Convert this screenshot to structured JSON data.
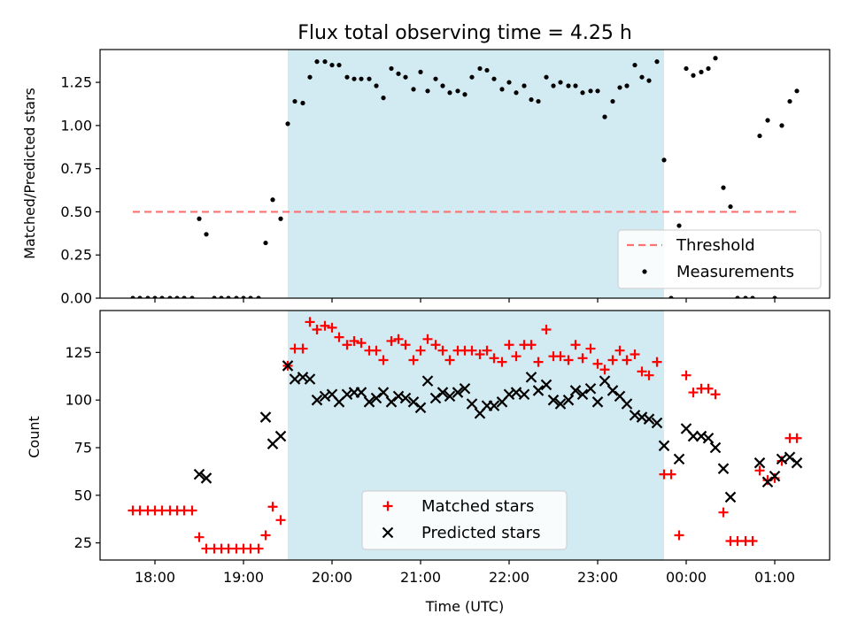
{
  "chart_data": {
    "title": "Flux total observing time = 4.25 h",
    "colors": {
      "shade": "#add8e6",
      "threshold": "#ff7070",
      "measurement": "#000000",
      "matched": "#ff0000",
      "predicted": "#000000"
    },
    "x_ticks": [
      {
        "value": 18,
        "label": "18:00"
      },
      {
        "value": 19,
        "label": "19:00"
      },
      {
        "value": 20,
        "label": "20:00"
      },
      {
        "value": 21,
        "label": "21:00"
      },
      {
        "value": 22,
        "label": "22:00"
      },
      {
        "value": 23,
        "label": "23:00"
      },
      {
        "value": 24,
        "label": "00:00"
      },
      {
        "value": 25,
        "label": "01:00"
      }
    ],
    "xlim": [
      17.38,
      25.62
    ],
    "xlabel": "Time (UTC)",
    "shaded_interval": [
      19.5,
      23.75
    ],
    "panels": [
      {
        "type": "scatter",
        "ylabel": "Matched/Predicted stars",
        "ylim": [
          0,
          1.44
        ],
        "y_ticks": [
          {
            "value": 0,
            "label": "0.00"
          },
          {
            "value": 0.25,
            "label": "0.25"
          },
          {
            "value": 0.5,
            "label": "0.50"
          },
          {
            "value": 0.75,
            "label": "0.75"
          },
          {
            "value": 1.0,
            "label": "1.00"
          },
          {
            "value": 1.25,
            "label": "1.25"
          }
        ],
        "legend": {
          "position": "lower right",
          "entries": [
            "Threshold",
            "Measurements"
          ]
        },
        "series": [
          {
            "name": "Threshold",
            "kind": "dashed-line",
            "x": [
              17.75,
              25.25
            ],
            "y": [
              0.5,
              0.5
            ]
          },
          {
            "name": "Measurements",
            "kind": "dot",
            "x": [
              17.75,
              17.83,
              17.92,
              18.0,
              18.08,
              18.17,
              18.25,
              18.33,
              18.42,
              18.5,
              18.58,
              18.67,
              18.75,
              18.83,
              18.92,
              19.0,
              19.08,
              19.17,
              19.25,
              19.33,
              19.42,
              19.5,
              19.58,
              19.67,
              19.75,
              19.83,
              19.92,
              20.0,
              20.08,
              20.17,
              20.25,
              20.33,
              20.42,
              20.5,
              20.58,
              20.67,
              20.75,
              20.83,
              20.92,
              21.0,
              21.08,
              21.17,
              21.25,
              21.33,
              21.42,
              21.5,
              21.58,
              21.67,
              21.75,
              21.83,
              21.92,
              22.0,
              22.08,
              22.17,
              22.25,
              22.33,
              22.42,
              22.5,
              22.58,
              22.67,
              22.75,
              22.83,
              22.92,
              23.0,
              23.08,
              23.17,
              23.25,
              23.33,
              23.42,
              23.5,
              23.58,
              23.67,
              23.75,
              23.83,
              23.92,
              24.0,
              24.08,
              24.17,
              24.25,
              24.33,
              24.42,
              24.5,
              24.58,
              24.67,
              24.75,
              24.83,
              24.92,
              25.0,
              25.08,
              25.17,
              25.25
            ],
            "y": [
              0.0,
              0.0,
              0.0,
              0.0,
              0.0,
              0.0,
              0.0,
              0.0,
              0.0,
              0.46,
              0.37,
              0.0,
              0.0,
              0.0,
              0.0,
              0.0,
              0.0,
              0.0,
              0.32,
              0.57,
              0.46,
              1.01,
              1.14,
              1.13,
              1.28,
              1.37,
              1.37,
              1.35,
              1.35,
              1.28,
              1.27,
              1.27,
              1.27,
              1.23,
              1.16,
              1.33,
              1.3,
              1.28,
              1.21,
              1.31,
              1.2,
              1.27,
              1.23,
              1.19,
              1.2,
              1.18,
              1.28,
              1.33,
              1.32,
              1.27,
              1.21,
              1.25,
              1.19,
              1.23,
              1.15,
              1.14,
              1.28,
              1.23,
              1.25,
              1.23,
              1.23,
              1.19,
              1.2,
              1.2,
              1.05,
              1.14,
              1.22,
              1.23,
              1.35,
              1.28,
              1.26,
              1.37,
              0.8,
              0.0,
              0.42,
              1.33,
              1.29,
              1.31,
              1.33,
              1.39,
              0.64,
              0.53,
              0.0,
              0.0,
              0.0,
              0.94,
              1.03,
              0.0,
              1.0,
              1.14,
              1.2
            ]
          }
        ]
      },
      {
        "type": "scatter",
        "ylabel": "Count",
        "ylim": [
          16,
          147
        ],
        "y_ticks": [
          {
            "value": 25,
            "label": "25"
          },
          {
            "value": 50,
            "label": "50"
          },
          {
            "value": 75,
            "label": "75"
          },
          {
            "value": 100,
            "label": "100"
          },
          {
            "value": 125,
            "label": "125"
          }
        ],
        "legend": {
          "position": "lower center",
          "entries": [
            "Matched stars",
            "Predicted stars"
          ]
        },
        "series": [
          {
            "name": "Matched stars",
            "kind": "plus",
            "x": [
              17.75,
              17.83,
              17.92,
              18.0,
              18.08,
              18.17,
              18.25,
              18.33,
              18.42,
              18.5,
              18.58,
              18.67,
              18.75,
              18.83,
              18.92,
              19.0,
              19.08,
              19.17,
              19.25,
              19.33,
              19.42,
              19.5,
              19.58,
              19.67,
              19.75,
              19.83,
              19.92,
              20.0,
              20.08,
              20.17,
              20.25,
              20.33,
              20.42,
              20.5,
              20.58,
              20.67,
              20.75,
              20.83,
              20.92,
              21.0,
              21.08,
              21.17,
              21.25,
              21.33,
              21.42,
              21.5,
              21.58,
              21.67,
              21.75,
              21.83,
              21.92,
              22.0,
              22.08,
              22.17,
              22.25,
              22.33,
              22.42,
              22.5,
              22.58,
              22.67,
              22.75,
              22.83,
              22.92,
              23.0,
              23.08,
              23.17,
              23.25,
              23.33,
              23.42,
              23.5,
              23.58,
              23.67,
              23.75,
              23.83,
              23.92,
              24.0,
              24.08,
              24.17,
              24.25,
              24.33,
              24.42,
              24.5,
              24.58,
              24.67,
              24.75,
              24.83,
              24.92,
              25.0,
              25.08,
              25.17,
              25.25
            ],
            "y": [
              42,
              42,
              42,
              42,
              42,
              42,
              42,
              42,
              42,
              28,
              22,
              22,
              22,
              22,
              22,
              22,
              22,
              22,
              29,
              44,
              37,
              118,
              127,
              127,
              141,
              137,
              139,
              138,
              133,
              129,
              131,
              130,
              126,
              126,
              121,
              131,
              132,
              129,
              121,
              126,
              132,
              129,
              126,
              121,
              126,
              126,
              126,
              124,
              126,
              122,
              120,
              129,
              123,
              129,
              129,
              120,
              137,
              123,
              123,
              121,
              129,
              122,
              127,
              119,
              116,
              121,
              126,
              121,
              124,
              115,
              113,
              120,
              61,
              61,
              29,
              113,
              104,
              106,
              106,
              103,
              41,
              26,
              26,
              26,
              26,
              63,
              58,
              59,
              68,
              80,
              80
            ]
          },
          {
            "name": "Predicted stars",
            "kind": "cross",
            "x": [
              18.5,
              18.58,
              19.25,
              19.33,
              19.42,
              19.5,
              19.58,
              19.67,
              19.75,
              19.83,
              19.92,
              20.0,
              20.08,
              20.17,
              20.25,
              20.33,
              20.42,
              20.5,
              20.58,
              20.67,
              20.75,
              20.83,
              20.92,
              21.0,
              21.08,
              21.17,
              21.25,
              21.33,
              21.42,
              21.5,
              21.58,
              21.67,
              21.75,
              21.83,
              21.92,
              22.0,
              22.08,
              22.17,
              22.25,
              22.33,
              22.42,
              22.5,
              22.58,
              22.67,
              22.75,
              22.83,
              22.92,
              23.0,
              23.08,
              23.17,
              23.25,
              23.33,
              23.42,
              23.5,
              23.58,
              23.67,
              23.75,
              23.92,
              24.0,
              24.08,
              24.17,
              24.25,
              24.33,
              24.42,
              24.5,
              24.83,
              24.92,
              25.0,
              25.08,
              25.17,
              25.25
            ],
            "y": [
              61,
              59,
              91,
              77,
              81,
              118,
              111,
              112,
              111,
              100,
              102,
              103,
              99,
              103,
              104,
              104,
              99,
              101,
              104,
              99,
              102,
              101,
              99,
              96,
              110,
              101,
              104,
              102,
              104,
              106,
              98,
              93,
              97,
              97,
              99,
              103,
              104,
              103,
              112,
              105,
              108,
              100,
              98,
              100,
              105,
              103,
              106,
              99,
              110,
              105,
              102,
              98,
              92,
              91,
              90,
              88,
              76,
              69,
              85,
              81,
              81,
              80,
              75,
              64,
              49,
              67,
              57,
              60,
              69,
              70,
              67
            ]
          }
        ]
      }
    ]
  }
}
